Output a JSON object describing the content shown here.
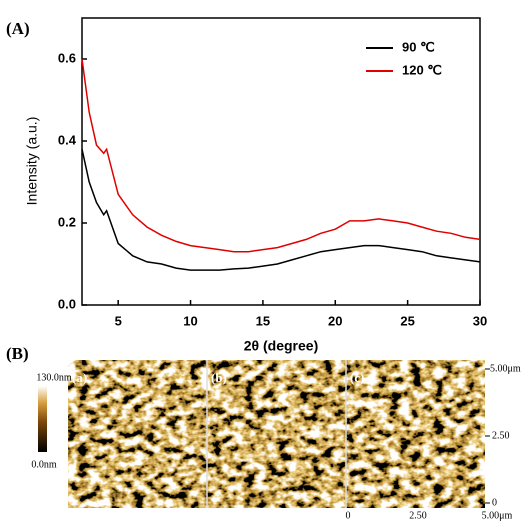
{
  "chart_data": {
    "type": "line",
    "panel_label": "(A)",
    "y_label": "Intensity (a.u.)",
    "x_label": "2θ (degree)",
    "x": [
      2.5,
      3,
      3.5,
      4,
      4.2,
      5,
      6,
      7,
      8,
      9,
      10,
      11,
      12,
      13,
      14,
      15,
      16,
      17,
      18,
      19,
      20,
      21,
      22,
      23,
      24,
      25,
      26,
      27,
      28,
      29,
      30
    ],
    "series": [
      {
        "name": "90 ℃",
        "color": "#000000",
        "values": [
          0.38,
          0.3,
          0.25,
          0.22,
          0.23,
          0.15,
          0.12,
          0.105,
          0.1,
          0.09,
          0.085,
          0.085,
          0.085,
          0.088,
          0.09,
          0.095,
          0.1,
          0.11,
          0.12,
          0.13,
          0.135,
          0.14,
          0.145,
          0.145,
          0.14,
          0.135,
          0.13,
          0.12,
          0.115,
          0.11,
          0.105
        ]
      },
      {
        "name": "120 ℃",
        "color": "#e00000",
        "values": [
          0.6,
          0.47,
          0.39,
          0.37,
          0.38,
          0.27,
          0.22,
          0.19,
          0.17,
          0.155,
          0.145,
          0.14,
          0.135,
          0.13,
          0.13,
          0.135,
          0.14,
          0.15,
          0.16,
          0.175,
          0.185,
          0.205,
          0.205,
          0.21,
          0.205,
          0.2,
          0.19,
          0.18,
          0.175,
          0.165,
          0.16
        ]
      }
    ],
    "xlim": [
      2.5,
      30
    ],
    "xticks": [
      5,
      10,
      15,
      20,
      25,
      30
    ],
    "ylim": [
      0,
      0.7
    ],
    "yticks": [
      {
        "value": 0,
        "label": "0.0"
      },
      {
        "value": 0.2,
        "label": "0.2"
      },
      {
        "value": 0.4,
        "label": "0.4"
      },
      {
        "value": 0.6,
        "label": "0.6"
      }
    ],
    "grid": false
  },
  "panel_b": {
    "panel_label": "(B)",
    "images": [
      "(a)",
      "(b)",
      "(c)"
    ],
    "scale_max": "130.0nm",
    "scale_min": "0.0nm",
    "right_axis": [
      "5.00μm",
      "2.50",
      "0"
    ],
    "bottom_axis": [
      "0",
      "2.50",
      "5.00μm"
    ]
  }
}
